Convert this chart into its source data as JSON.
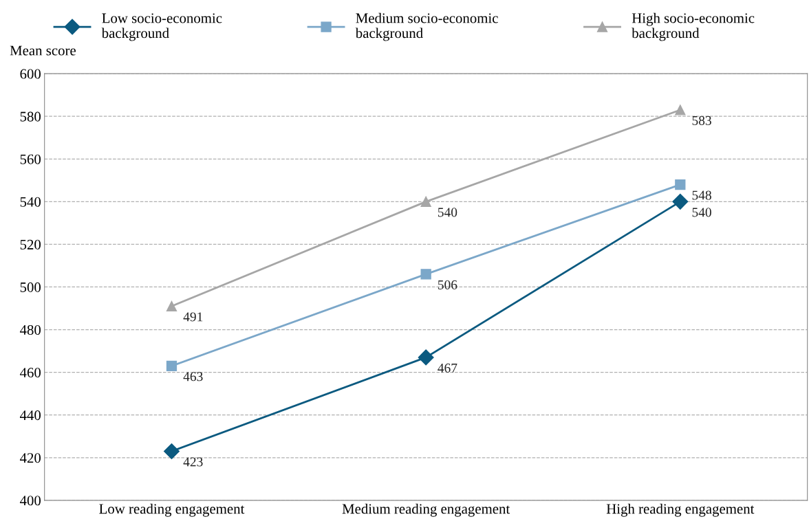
{
  "chart_data": {
    "type": "line",
    "ylabel": "Mean score",
    "categories": [
      "Low reading engagement",
      "Medium reading engagement",
      "High reading engagement"
    ],
    "series": [
      {
        "name": "Low socio-economic background",
        "color": "#0b5a80",
        "marker": "diamond",
        "values": [
          423,
          467,
          540
        ]
      },
      {
        "name": "Medium socio-economic background",
        "color": "#7ba7c9",
        "marker": "square",
        "values": [
          463,
          506,
          548
        ]
      },
      {
        "name": "High socio-economic background",
        "color": "#a6a6a6",
        "marker": "triangle",
        "values": [
          491,
          540,
          583
        ]
      }
    ],
    "ylim": [
      400,
      600
    ],
    "yticks": [
      400,
      420,
      440,
      460,
      480,
      500,
      520,
      540,
      560,
      580,
      600
    ],
    "grid": "y",
    "legend": "top",
    "data_labels": true,
    "line_style": "solid"
  }
}
